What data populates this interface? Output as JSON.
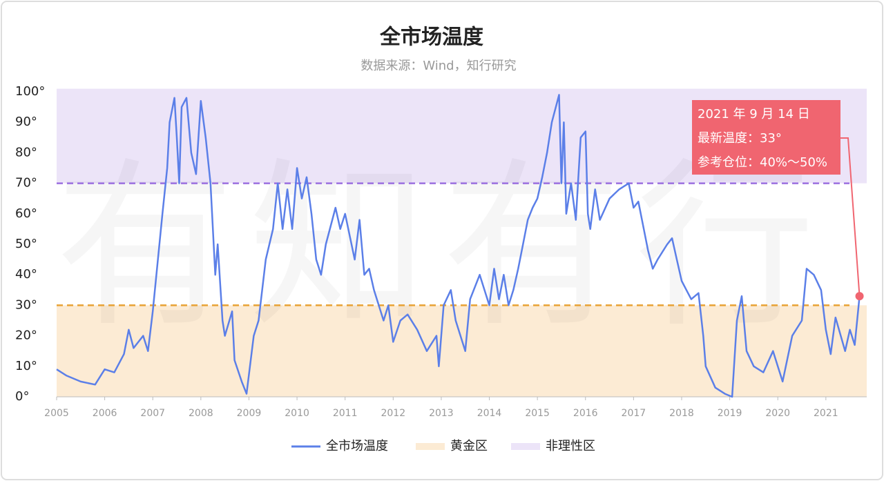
{
  "chart_data": {
    "type": "line",
    "title": "全市场温度",
    "subtitle": "数据来源：Wind，知行研究",
    "watermark": "有知有行",
    "xlim": [
      2005,
      2021.85
    ],
    "xticks": [
      2005,
      2006,
      2007,
      2008,
      2009,
      2010,
      2011,
      2012,
      2013,
      2014,
      2015,
      2016,
      2017,
      2018,
      2019,
      2020,
      2021
    ],
    "ylim": [
      0,
      101
    ],
    "yticks": [
      {
        "value": 0,
        "label": "0°"
      },
      {
        "value": 10,
        "label": "10°"
      },
      {
        "value": 20,
        "label": "20°"
      },
      {
        "value": 30,
        "label": "30°"
      },
      {
        "value": 40,
        "label": "40°"
      },
      {
        "value": 50,
        "label": "50°"
      },
      {
        "value": 60,
        "label": "60°"
      },
      {
        "value": 70,
        "label": "70°"
      },
      {
        "value": 80,
        "label": "80°"
      },
      {
        "value": 90,
        "label": "90°"
      },
      {
        "value": 100,
        "label": "100°"
      }
    ],
    "x": [
      2005.0,
      2005.2,
      2005.5,
      2005.8,
      2006.0,
      2006.2,
      2006.4,
      2006.5,
      2006.6,
      2006.8,
      2006.9,
      2007.0,
      2007.2,
      2007.3,
      2007.35,
      2007.45,
      2007.5,
      2007.55,
      2007.6,
      2007.7,
      2007.8,
      2007.9,
      2008.0,
      2008.1,
      2008.2,
      2008.3,
      2008.35,
      2008.45,
      2008.5,
      2008.65,
      2008.7,
      2008.85,
      2008.95,
      2009.1,
      2009.2,
      2009.35,
      2009.5,
      2009.6,
      2009.7,
      2009.8,
      2009.9,
      2010.0,
      2010.1,
      2010.2,
      2010.3,
      2010.4,
      2010.5,
      2010.6,
      2010.8,
      2010.9,
      2011.0,
      2011.2,
      2011.3,
      2011.4,
      2011.5,
      2011.6,
      2011.8,
      2011.9,
      2012.0,
      2012.15,
      2012.3,
      2012.5,
      2012.7,
      2012.9,
      2012.95,
      2013.05,
      2013.2,
      2013.3,
      2013.5,
      2013.6,
      2013.8,
      2014.0,
      2014.1,
      2014.2,
      2014.3,
      2014.4,
      2014.5,
      2014.6,
      2014.7,
      2014.8,
      2014.9,
      2015.0,
      2015.1,
      2015.2,
      2015.3,
      2015.45,
      2015.5,
      2015.55,
      2015.6,
      2015.7,
      2015.8,
      2015.9,
      2016.0,
      2016.05,
      2016.1,
      2016.2,
      2016.3,
      2016.5,
      2016.7,
      2016.9,
      2017.0,
      2017.1,
      2017.3,
      2017.4,
      2017.5,
      2017.7,
      2017.8,
      2017.9,
      2018.0,
      2018.1,
      2018.2,
      2018.35,
      2018.45,
      2018.5,
      2018.7,
      2018.9,
      2019.05,
      2019.15,
      2019.25,
      2019.35,
      2019.5,
      2019.7,
      2019.9,
      2020.0,
      2020.1,
      2020.3,
      2020.5,
      2020.6,
      2020.75,
      2020.9,
      2021.0,
      2021.1,
      2021.2,
      2021.4,
      2021.5,
      2021.6,
      2021.7
    ],
    "series": [
      {
        "name": "全市场温度",
        "color": "#5b7fe8",
        "values": [
          9,
          7,
          5,
          4,
          9,
          8,
          14,
          22,
          16,
          20,
          15,
          28,
          60,
          75,
          90,
          98,
          85,
          70,
          95,
          98,
          80,
          73,
          97,
          85,
          70,
          40,
          50,
          25,
          20,
          28,
          12,
          5,
          1,
          20,
          25,
          45,
          55,
          70,
          55,
          68,
          55,
          75,
          65,
          72,
          60,
          45,
          40,
          50,
          62,
          55,
          60,
          45,
          58,
          40,
          42,
          35,
          25,
          30,
          18,
          25,
          27,
          22,
          15,
          20,
          10,
          30,
          35,
          25,
          15,
          32,
          40,
          30,
          42,
          32,
          40,
          30,
          35,
          42,
          50,
          58,
          62,
          65,
          72,
          80,
          90,
          99,
          70,
          90,
          60,
          70,
          58,
          85,
          87,
          60,
          55,
          68,
          58,
          65,
          68,
          70,
          62,
          64,
          48,
          42,
          45,
          50,
          52,
          45,
          38,
          35,
          32,
          34,
          20,
          10,
          3,
          1,
          0,
          25,
          33,
          15,
          10,
          8,
          15,
          10,
          5,
          20,
          25,
          42,
          40,
          35,
          22,
          14,
          26,
          15,
          22,
          17,
          33
        ]
      }
    ],
    "bands": [
      {
        "name": "黄金区",
        "color": "#fcebd4",
        "range": [
          0,
          30
        ],
        "line_color": "#e8a234"
      },
      {
        "name": "非理性区",
        "color": "#ece4f8",
        "range": [
          70,
          101
        ],
        "line_color": "#9b6fe0"
      }
    ],
    "annotation": {
      "lines": [
        "2021 年 9 月 14 日",
        "最新温度：33°",
        "参考仓位：40%～50%"
      ],
      "color": "#f06570"
    }
  }
}
